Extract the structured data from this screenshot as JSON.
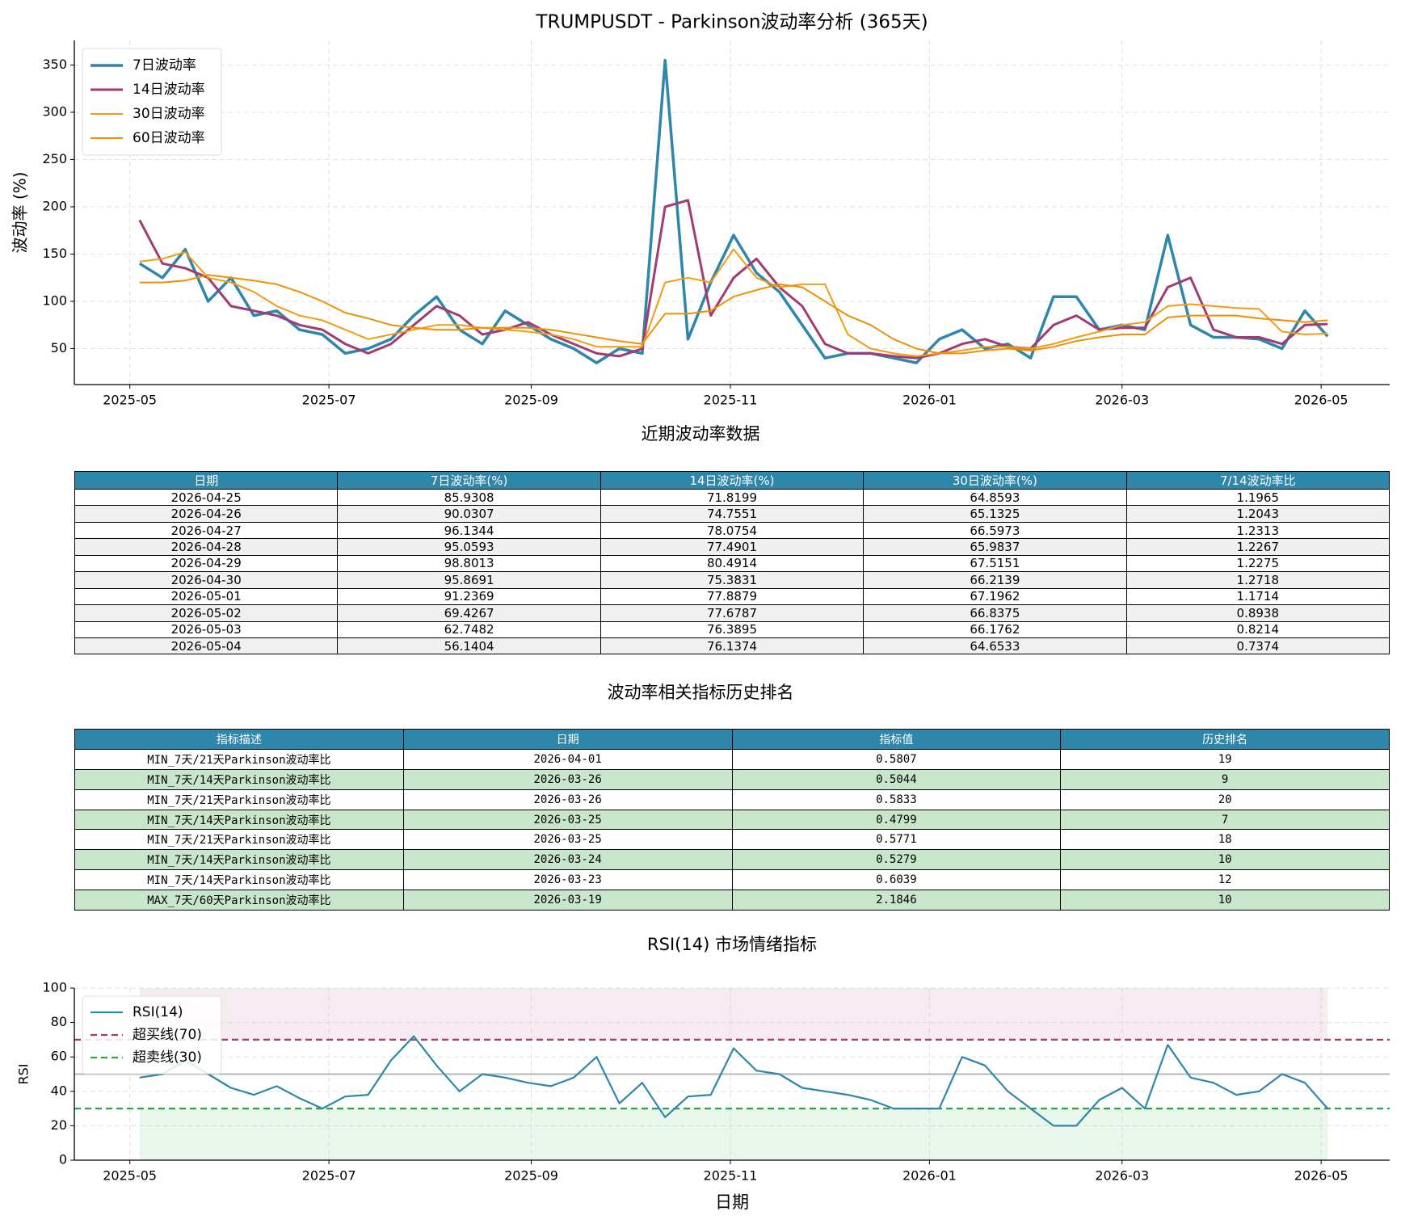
{
  "chart_data": [
    {
      "type": "line",
      "title": "TRUMPUSDT - Parkinson波动率分析 (365天)",
      "ylabel": "波动率 (%)",
      "x": [
        "2025-05-04",
        "2025-05-11",
        "2025-05-18",
        "2025-05-25",
        "2025-06-01",
        "2025-06-08",
        "2025-06-15",
        "2025-06-22",
        "2025-06-29",
        "2025-07-06",
        "2025-07-13",
        "2025-07-20",
        "2025-07-27",
        "2025-08-03",
        "2025-08-10",
        "2025-08-17",
        "2025-08-24",
        "2025-08-31",
        "2025-09-07",
        "2025-09-14",
        "2025-09-21",
        "2025-09-28",
        "2025-10-05",
        "2025-10-12",
        "2025-10-19",
        "2025-10-26",
        "2025-11-02",
        "2025-11-09",
        "2025-11-16",
        "2025-11-23",
        "2025-11-30",
        "2025-12-07",
        "2025-12-14",
        "2025-12-21",
        "2025-12-28",
        "2026-01-04",
        "2026-01-11",
        "2026-01-18",
        "2026-01-25",
        "2026-02-01",
        "2026-02-08",
        "2026-02-15",
        "2026-02-22",
        "2026-03-01",
        "2026-03-08",
        "2026-03-15",
        "2026-03-22",
        "2026-03-29",
        "2026-04-05",
        "2026-04-12",
        "2026-04-19",
        "2026-04-26",
        "2026-05-03"
      ],
      "series": [
        {
          "name": "7日波动率",
          "color": "#2e86ab",
          "values": [
            140,
            125,
            155,
            100,
            125,
            85,
            90,
            70,
            65,
            45,
            50,
            60,
            85,
            105,
            70,
            55,
            90,
            75,
            60,
            50,
            35,
            50,
            45,
            355,
            60,
            120,
            170,
            130,
            110,
            75,
            40,
            45,
            45,
            40,
            35,
            60,
            70,
            50,
            55,
            40,
            105,
            105,
            70,
            75,
            70,
            170,
            75,
            62,
            62,
            60,
            50,
            90,
            63
          ]
        },
        {
          "name": "14日波动率",
          "color": "#a23b72",
          "values": [
            186,
            140,
            135,
            125,
            95,
            90,
            85,
            75,
            70,
            55,
            45,
            55,
            75,
            95,
            85,
            65,
            70,
            78,
            65,
            55,
            45,
            42,
            50,
            200,
            207,
            85,
            125,
            145,
            115,
            95,
            55,
            45,
            45,
            42,
            40,
            45,
            55,
            60,
            52,
            50,
            75,
            85,
            70,
            72,
            72,
            115,
            125,
            70,
            62,
            62,
            55,
            75,
            76
          ]
        },
        {
          "name": "30日波动率",
          "color": "#f39c12",
          "values": [
            142,
            145,
            152,
            125,
            120,
            110,
            95,
            85,
            80,
            70,
            60,
            65,
            70,
            75,
            75,
            72,
            70,
            68,
            65,
            60,
            52,
            52,
            52,
            120,
            125,
            120,
            155,
            125,
            115,
            118,
            118,
            65,
            50,
            45,
            42,
            45,
            48,
            52,
            52,
            50,
            55,
            62,
            68,
            75,
            78,
            95,
            97,
            95,
            93,
            92,
            68,
            65,
            66
          ]
        },
        {
          "name": "60日波动率",
          "color": "#f18f01",
          "values": [
            120,
            120,
            122,
            128,
            125,
            122,
            118,
            110,
            100,
            88,
            82,
            75,
            72,
            70,
            70,
            72,
            72,
            72,
            70,
            66,
            62,
            58,
            55,
            87,
            87,
            90,
            105,
            112,
            118,
            115,
            100,
            85,
            75,
            60,
            50,
            45,
            45,
            48,
            50,
            48,
            52,
            58,
            62,
            65,
            65,
            83,
            85,
            85,
            85,
            82,
            80,
            78,
            80
          ]
        }
      ],
      "xlim": [
        "2025-04-14",
        "2026-05-22"
      ],
      "xticks": [
        {
          "value": "2025-05-01",
          "label": "2025-05"
        },
        {
          "value": "2025-07-01",
          "label": "2025-07"
        },
        {
          "value": "2025-09-01",
          "label": "2025-09"
        },
        {
          "value": "2025-11-01",
          "label": "2025-11"
        },
        {
          "value": "2026-01-01",
          "label": "2026-01"
        },
        {
          "value": "2026-03-01",
          "label": "2026-03"
        },
        {
          "value": "2026-05-01",
          "label": "2026-05"
        }
      ],
      "ylim": [
        12,
        376
      ],
      "yticks": [
        50,
        100,
        150,
        200,
        250,
        300,
        350
      ],
      "grid": true,
      "legend": "upper-left"
    },
    {
      "type": "line",
      "title": "RSI(14) 市场情绪指标",
      "ylabel": "RSI",
      "xlabel": "日期",
      "x": [
        "2025-05-04",
        "2025-05-11",
        "2025-05-18",
        "2025-05-25",
        "2025-06-01",
        "2025-06-08",
        "2025-06-15",
        "2025-06-22",
        "2025-06-29",
        "2025-07-06",
        "2025-07-13",
        "2025-07-20",
        "2025-07-27",
        "2025-08-03",
        "2025-08-10",
        "2025-08-17",
        "2025-08-24",
        "2025-08-31",
        "2025-09-07",
        "2025-09-14",
        "2025-09-21",
        "2025-09-28",
        "2025-10-05",
        "2025-10-12",
        "2025-10-19",
        "2025-10-26",
        "2025-11-02",
        "2025-11-09",
        "2025-11-16",
        "2025-11-23",
        "2025-11-30",
        "2025-12-07",
        "2025-12-14",
        "2025-12-21",
        "2025-12-28",
        "2026-01-04",
        "2026-01-11",
        "2026-01-18",
        "2026-01-25",
        "2026-02-01",
        "2026-02-08",
        "2026-02-15",
        "2026-02-22",
        "2026-03-01",
        "2026-03-08",
        "2026-03-15",
        "2026-03-22",
        "2026-03-29",
        "2026-04-05",
        "2026-04-12",
        "2026-04-19",
        "2026-04-26",
        "2026-05-03"
      ],
      "series": [
        {
          "name": "RSI(14)",
          "color": "#2e86ab",
          "values": [
            48,
            50,
            58,
            50,
            42,
            38,
            43,
            36,
            30,
            37,
            38,
            58,
            72,
            55,
            40,
            50,
            48,
            45,
            43,
            48,
            60,
            33,
            45,
            25,
            37,
            38,
            65,
            52,
            50,
            42,
            40,
            38,
            35,
            30,
            30,
            30,
            60,
            55,
            40,
            30,
            20,
            20,
            35,
            42,
            30,
            67,
            48,
            45,
            38,
            40,
            50,
            45,
            30
          ]
        }
      ],
      "reference_lines": [
        {
          "name": "超买线(70)",
          "value": 70,
          "color": "#a23b72",
          "zone": "above"
        },
        {
          "name": "超卖线(30)",
          "value": 30,
          "color": "#28a745",
          "zone": "below"
        }
      ],
      "midline": 50,
      "xlim": [
        "2025-04-14",
        "2026-05-22"
      ],
      "xticks": [
        {
          "value": "2025-05-01",
          "label": "2025-05"
        },
        {
          "value": "2025-07-01",
          "label": "2025-07"
        },
        {
          "value": "2025-09-01",
          "label": "2025-09"
        },
        {
          "value": "2025-11-01",
          "label": "2025-11"
        },
        {
          "value": "2026-01-01",
          "label": "2026-01"
        },
        {
          "value": "2026-03-01",
          "label": "2026-03"
        },
        {
          "value": "2026-05-01",
          "label": "2026-05"
        }
      ],
      "ylim": [
        0,
        100
      ],
      "yticks": [
        0,
        20,
        40,
        60,
        80,
        100
      ],
      "grid": true,
      "legend": "upper-left"
    }
  ],
  "tables": [
    {
      "title": "近期波动率数据",
      "columns": [
        "日期",
        "7日波动率(%)",
        "14日波动率(%)",
        "30日波动率(%)",
        "7/14波动率比"
      ],
      "rows": [
        [
          "2026-04-25",
          85.9308,
          71.8199,
          64.8593,
          1.1965
        ],
        [
          "2026-04-26",
          90.0307,
          74.7551,
          65.1325,
          1.2043
        ],
        [
          "2026-04-27",
          96.1344,
          78.0754,
          66.5973,
          1.2313
        ],
        [
          "2026-04-28",
          95.0593,
          77.4901,
          65.9837,
          1.2267
        ],
        [
          "2026-04-29",
          98.8013,
          80.4914,
          67.5151,
          1.2275
        ],
        [
          "2026-04-30",
          95.8691,
          75.3831,
          66.2139,
          1.2718
        ],
        [
          "2026-05-01",
          91.2369,
          77.8879,
          67.1962,
          1.1714
        ],
        [
          "2026-05-02",
          69.4267,
          77.6787,
          66.8375,
          0.8938
        ],
        [
          "2026-05-03",
          62.7482,
          76.3895,
          66.1762,
          0.8214
        ],
        [
          "2026-05-04",
          56.1404,
          76.1374,
          64.6533,
          0.7374
        ]
      ]
    },
    {
      "title": "波动率相关指标历史排名",
      "columns": [
        "指标描述",
        "日期",
        "指标值",
        "历史排名"
      ],
      "rows": [
        [
          "MIN_7天/21天Parkinson波动率比",
          "2026-04-01",
          0.5807,
          19
        ],
        [
          "MIN_7天/14天Parkinson波动率比",
          "2026-03-26",
          0.5044,
          9
        ],
        [
          "MIN_7天/21天Parkinson波动率比",
          "2026-03-26",
          0.5833,
          20
        ],
        [
          "MIN_7天/14天Parkinson波动率比",
          "2026-03-25",
          0.4799,
          7
        ],
        [
          "MIN_7天/21天Parkinson波动率比",
          "2026-03-25",
          0.5771,
          18
        ],
        [
          "MIN_7天/14天Parkinson波动率比",
          "2026-03-24",
          0.5279,
          10
        ],
        [
          "MIN_7天/14天Parkinson波动率比",
          "2026-03-23",
          0.6039,
          12
        ],
        [
          "MAX_7天/60天Parkinson波动率比",
          "2026-03-19",
          2.1846,
          10
        ]
      ]
    }
  ]
}
